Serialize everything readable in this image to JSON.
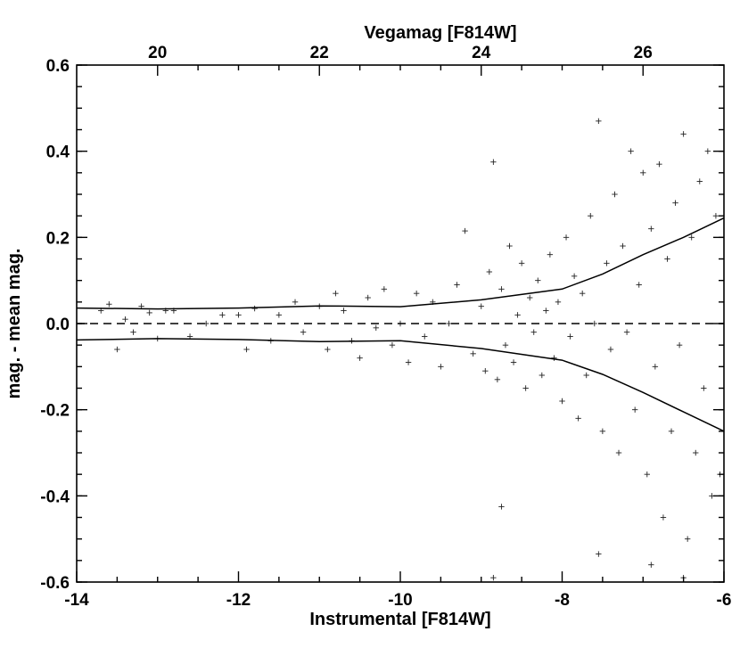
{
  "chart_data": {
    "type": "scatter",
    "title": "",
    "xlabel": "Instrumental [F814W]",
    "ylabel": "mag. - mean mag.",
    "xlim": [
      -14,
      -6
    ],
    "ylim": [
      -0.6,
      0.6
    ],
    "x_ticks": [
      -14,
      -12,
      -10,
      -8,
      -6
    ],
    "x_tick_labels": [
      "-14",
      "-12",
      "-10",
      "-8",
      "-6"
    ],
    "y_ticks": [
      -0.6,
      -0.4,
      -0.2,
      0.0,
      0.2,
      0.4,
      0.6
    ],
    "y_tick_labels": [
      "-0.6",
      "-0.4",
      "-0.2",
      "0.0",
      "0.2",
      "0.4",
      "0.6"
    ],
    "top_axis": {
      "label": "Vegamag [F814W]",
      "ticks": [
        20,
        22,
        24,
        26
      ],
      "tick_labels": [
        "20",
        "22",
        "24",
        "26"
      ],
      "instrumental_at_ticks": [
        -13.0,
        -11.0,
        -9.0,
        -7.0
      ]
    },
    "grid": false,
    "legend": "none",
    "reference_line": {
      "y": 0.0,
      "style": "dashed"
    },
    "envelope_upper": {
      "x": [
        -14.0,
        -13.0,
        -12.0,
        -11.0,
        -10.0,
        -9.0,
        -8.0,
        -7.5,
        -7.0,
        -6.5,
        -6.0
      ],
      "y": [
        0.036,
        0.034,
        0.036,
        0.041,
        0.039,
        0.055,
        0.08,
        0.115,
        0.16,
        0.2,
        0.245
      ]
    },
    "envelope_lower": {
      "x": [
        -14.0,
        -13.0,
        -12.0,
        -11.0,
        -10.0,
        -9.0,
        -8.0,
        -7.5,
        -7.0,
        -6.5,
        -6.0
      ],
      "y": [
        -0.038,
        -0.035,
        -0.037,
        -0.042,
        -0.04,
        -0.058,
        -0.085,
        -0.118,
        -0.16,
        -0.205,
        -0.25
      ]
    },
    "scatter": {
      "marker": "plus",
      "color": "#222222",
      "points": [
        [
          -13.7,
          0.03
        ],
        [
          -13.6,
          0.045
        ],
        [
          -13.5,
          -0.06
        ],
        [
          -13.4,
          0.01
        ],
        [
          -13.3,
          -0.02
        ],
        [
          -13.2,
          0.04
        ],
        [
          -13.1,
          0.025
        ],
        [
          -13.0,
          -0.035
        ],
        [
          -12.9,
          0.03
        ],
        [
          -12.8,
          0.03
        ],
        [
          -12.6,
          -0.03
        ],
        [
          -12.4,
          0.0
        ],
        [
          -12.2,
          0.02
        ],
        [
          -12.0,
          0.02
        ],
        [
          -11.9,
          -0.06
        ],
        [
          -11.8,
          0.035
        ],
        [
          -11.6,
          -0.04
        ],
        [
          -11.5,
          0.02
        ],
        [
          -11.3,
          0.05
        ],
        [
          -11.2,
          -0.02
        ],
        [
          -11.0,
          0.04
        ],
        [
          -10.9,
          -0.06
        ],
        [
          -10.8,
          0.07
        ],
        [
          -10.7,
          0.03
        ],
        [
          -10.6,
          -0.04
        ],
        [
          -10.5,
          -0.08
        ],
        [
          -10.4,
          0.06
        ],
        [
          -10.3,
          -0.01
        ],
        [
          -10.2,
          0.08
        ],
        [
          -10.1,
          -0.05
        ],
        [
          -10.0,
          0.0
        ],
        [
          -9.9,
          -0.09
        ],
        [
          -9.8,
          0.07
        ],
        [
          -9.7,
          -0.03
        ],
        [
          -9.6,
          0.05
        ],
        [
          -9.5,
          -0.1
        ],
        [
          -9.4,
          0.0
        ],
        [
          -9.3,
          0.09
        ],
        [
          -9.2,
          0.215
        ],
        [
          -9.1,
          -0.07
        ],
        [
          -9.0,
          0.04
        ],
        [
          -8.95,
          -0.11
        ],
        [
          -8.9,
          0.12
        ],
        [
          -8.85,
          0.375
        ],
        [
          -8.8,
          -0.13
        ],
        [
          -8.75,
          0.08
        ],
        [
          -8.7,
          -0.05
        ],
        [
          -8.65,
          0.18
        ],
        [
          -8.6,
          -0.09
        ],
        [
          -8.55,
          0.02
        ],
        [
          -8.5,
          0.14
        ],
        [
          -8.45,
          -0.15
        ],
        [
          -8.4,
          0.06
        ],
        [
          -8.35,
          -0.02
        ],
        [
          -8.3,
          0.1
        ],
        [
          -8.25,
          -0.12
        ],
        [
          -8.2,
          0.03
        ],
        [
          -8.15,
          0.16
        ],
        [
          -8.1,
          -0.08
        ],
        [
          -8.05,
          0.05
        ],
        [
          -8.0,
          -0.18
        ],
        [
          -7.95,
          0.2
        ],
        [
          -7.9,
          -0.03
        ],
        [
          -7.85,
          0.11
        ],
        [
          -7.8,
          -0.22
        ],
        [
          -7.75,
          0.07
        ],
        [
          -7.7,
          -0.12
        ],
        [
          -7.65,
          0.25
        ],
        [
          -7.6,
          0.0
        ],
        [
          -7.55,
          0.47
        ],
        [
          -7.5,
          -0.25
        ],
        [
          -7.45,
          0.14
        ],
        [
          -7.4,
          -0.06
        ],
        [
          -7.35,
          0.3
        ],
        [
          -7.3,
          -0.3
        ],
        [
          -7.25,
          0.18
        ],
        [
          -7.2,
          -0.02
        ],
        [
          -7.15,
          0.4
        ],
        [
          -7.1,
          -0.2
        ],
        [
          -7.05,
          0.09
        ],
        [
          -7.0,
          0.35
        ],
        [
          -6.95,
          -0.35
        ],
        [
          -6.9,
          0.22
        ],
        [
          -6.85,
          -0.1
        ],
        [
          -6.8,
          0.37
        ],
        [
          -6.75,
          -0.45
        ],
        [
          -6.7,
          0.15
        ],
        [
          -6.65,
          -0.25
        ],
        [
          -6.6,
          0.28
        ],
        [
          -6.55,
          -0.05
        ],
        [
          -6.5,
          0.44
        ],
        [
          -6.45,
          -0.5
        ],
        [
          -6.4,
          0.2
        ],
        [
          -6.35,
          -0.3
        ],
        [
          -6.3,
          0.33
        ],
        [
          -6.25,
          -0.15
        ],
        [
          -6.2,
          0.4
        ],
        [
          -6.15,
          -0.4
        ],
        [
          -6.1,
          0.25
        ],
        [
          -6.05,
          -0.35
        ],
        [
          -8.85,
          -0.59
        ],
        [
          -8.75,
          -0.425
        ],
        [
          -7.55,
          -0.535
        ],
        [
          -6.5,
          -0.59
        ],
        [
          -6.9,
          -0.56
        ]
      ]
    }
  }
}
